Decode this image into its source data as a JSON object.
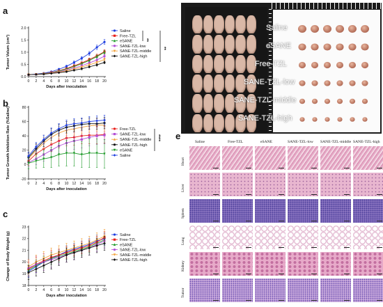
{
  "colors": {
    "Saline": "#1f3fe0",
    "Free-TZL": "#e8201b",
    "eSANE": "#1f9a2a",
    "SANE-TZL-low": "#b24fd6",
    "SANE-TZL-middle": "#f2a13a",
    "SANE-TZL-high": "#111111"
  },
  "chart_data": [
    {
      "panel": "a",
      "type": "line",
      "xlabel": "Days after inoculation",
      "ylabel": "Tumor Volum (cm³)",
      "x": [
        0,
        2,
        4,
        6,
        8,
        10,
        12,
        14,
        16,
        18,
        20
      ],
      "xlim": [
        0,
        20
      ],
      "ylim": [
        0,
        2.0
      ],
      "yticks": [
        0.0,
        0.5,
        1.0,
        1.5,
        2.0
      ],
      "ytick_labels": [
        "0.0",
        "0.5",
        "1.0",
        "1.5",
        "2.0"
      ],
      "legend_position": "top-right",
      "significance": [
        "**",
        "**"
      ],
      "series": [
        {
          "name": "Saline",
          "values": [
            0.08,
            0.1,
            0.14,
            0.2,
            0.3,
            0.42,
            0.58,
            0.75,
            0.95,
            1.2,
            1.42
          ],
          "err": [
            0.01,
            0.02,
            0.02,
            0.03,
            0.04,
            0.05,
            0.06,
            0.07,
            0.08,
            0.09,
            0.1
          ]
        },
        {
          "name": "Free-TZL",
          "values": [
            0.08,
            0.09,
            0.12,
            0.17,
            0.24,
            0.33,
            0.44,
            0.56,
            0.7,
            0.85,
            1.02
          ],
          "err": [
            0.01,
            0.01,
            0.02,
            0.02,
            0.03,
            0.04,
            0.05,
            0.05,
            0.06,
            0.07,
            0.08
          ]
        },
        {
          "name": "eSANE",
          "values": [
            0.08,
            0.09,
            0.12,
            0.16,
            0.23,
            0.31,
            0.41,
            0.53,
            0.66,
            0.82,
            1.0
          ],
          "err": [
            0.01,
            0.01,
            0.02,
            0.02,
            0.03,
            0.04,
            0.05,
            0.05,
            0.06,
            0.07,
            0.08
          ]
        },
        {
          "name": "SANE-TZL-low",
          "values": [
            0.08,
            0.09,
            0.11,
            0.15,
            0.2,
            0.27,
            0.35,
            0.45,
            0.56,
            0.68,
            0.84
          ],
          "err": [
            0.01,
            0.01,
            0.02,
            0.02,
            0.03,
            0.03,
            0.04,
            0.05,
            0.05,
            0.06,
            0.07
          ]
        },
        {
          "name": "SANE-TZL-middle",
          "values": [
            0.08,
            0.09,
            0.11,
            0.14,
            0.18,
            0.24,
            0.31,
            0.39,
            0.48,
            0.58,
            0.7
          ],
          "err": [
            0.01,
            0.01,
            0.01,
            0.02,
            0.02,
            0.03,
            0.04,
            0.04,
            0.05,
            0.05,
            0.06
          ]
        },
        {
          "name": "SANE-TZL-high",
          "values": [
            0.08,
            0.09,
            0.1,
            0.13,
            0.16,
            0.2,
            0.26,
            0.32,
            0.4,
            0.48,
            0.58
          ],
          "err": [
            0.01,
            0.01,
            0.01,
            0.02,
            0.02,
            0.03,
            0.03,
            0.04,
            0.04,
            0.05,
            0.05
          ]
        }
      ]
    },
    {
      "panel": "b",
      "type": "line",
      "xlabel": "Days after inoculation",
      "ylabel": "Tumor Growth Inhibition Rate  (%Saline)",
      "x": [
        0,
        2,
        4,
        6,
        8,
        10,
        12,
        14,
        16,
        18,
        20
      ],
      "xlim": [
        0,
        20
      ],
      "ylim": [
        -20,
        80
      ],
      "yticks": [
        -20,
        0,
        20,
        40,
        60,
        80
      ],
      "ytick_labels": [
        "-20",
        "0",
        "20",
        "40",
        "60",
        "80"
      ],
      "legend_position": "right",
      "significance": [
        "****"
      ],
      "series": [
        {
          "name": "Free-TZL",
          "values": [
            5,
            15,
            22,
            28,
            33,
            37,
            38,
            40,
            41,
            41,
            42
          ],
          "err": [
            6,
            8,
            9,
            10,
            10,
            11,
            11,
            11,
            12,
            12,
            12
          ]
        },
        {
          "name": "SANE-TZL-low",
          "values": [
            3,
            8,
            14,
            20,
            26,
            30,
            33,
            35,
            38,
            40,
            41
          ],
          "err": [
            6,
            8,
            9,
            10,
            11,
            11,
            12,
            12,
            12,
            12,
            12
          ]
        },
        {
          "name": "SANE-TZL-middle",
          "values": [
            8,
            20,
            30,
            38,
            44,
            48,
            50,
            52,
            54,
            55,
            55
          ],
          "err": [
            6,
            8,
            8,
            9,
            9,
            9,
            9,
            9,
            9,
            9,
            9
          ]
        },
        {
          "name": "SANE-TZL-high",
          "values": [
            10,
            22,
            33,
            42,
            48,
            52,
            54,
            56,
            57,
            57,
            58
          ],
          "err": [
            6,
            7,
            8,
            8,
            8,
            8,
            8,
            8,
            8,
            8,
            8
          ]
        },
        {
          "name": "eSANE",
          "values": [
            2,
            5,
            8,
            10,
            14,
            16,
            16,
            14,
            16,
            16,
            15
          ],
          "err": [
            8,
            10,
            12,
            14,
            16,
            18,
            18,
            18,
            20,
            20,
            20
          ]
        },
        {
          "name": "Saline",
          "values": [
            12,
            25,
            35,
            44,
            50,
            55,
            57,
            58,
            60,
            61,
            62
          ],
          "err": [
            5,
            6,
            6,
            7,
            7,
            7,
            7,
            7,
            7,
            7,
            7
          ]
        }
      ]
    },
    {
      "panel": "c",
      "type": "line",
      "xlabel": "Days after inoculation",
      "ylabel": "Change of Body Weight  (g)",
      "x": [
        0,
        2,
        4,
        6,
        8,
        10,
        12,
        14,
        16,
        18,
        20
      ],
      "xlim": [
        0,
        20
      ],
      "ylim": [
        18,
        23
      ],
      "yticks": [
        18,
        19,
        20,
        21,
        22,
        23
      ],
      "ytick_labels": [
        "18",
        "19",
        "20",
        "21",
        "22",
        "23"
      ],
      "legend_position": "top-right",
      "series": [
        {
          "name": "Saline",
          "values": [
            19.2,
            19.6,
            20.0,
            20.3,
            20.6,
            20.9,
            21.1,
            21.3,
            21.5,
            21.8,
            22.0
          ],
          "err": [
            0.5,
            0.5,
            0.5,
            0.5,
            0.5,
            0.5,
            0.5,
            0.5,
            0.5,
            0.5,
            0.5
          ]
        },
        {
          "name": "Free-TZL",
          "values": [
            19.4,
            19.8,
            20.1,
            20.4,
            20.6,
            20.8,
            21.0,
            21.2,
            21.4,
            21.7,
            22.1
          ],
          "err": [
            0.6,
            0.6,
            0.6,
            0.6,
            0.5,
            0.5,
            0.5,
            0.5,
            0.5,
            0.5,
            0.5
          ]
        },
        {
          "name": "eSANE",
          "values": [
            19.3,
            19.7,
            20.0,
            20.3,
            20.5,
            20.7,
            20.9,
            21.1,
            21.3,
            21.6,
            21.9
          ],
          "err": [
            0.5,
            0.5,
            0.5,
            0.5,
            0.5,
            0.5,
            0.5,
            0.5,
            0.5,
            0.5,
            0.5
          ]
        },
        {
          "name": "SANE-TZL-low",
          "values": [
            19.5,
            19.8,
            20.0,
            20.2,
            20.4,
            20.6,
            20.8,
            21.0,
            21.2,
            21.5,
            21.8
          ],
          "err": [
            0.7,
            0.7,
            0.7,
            0.7,
            0.6,
            0.6,
            0.6,
            0.6,
            0.6,
            0.6,
            0.6
          ]
        },
        {
          "name": "SANE-TZL-middle",
          "values": [
            19.6,
            20.0,
            20.3,
            20.6,
            20.8,
            21.0,
            21.2,
            21.4,
            21.6,
            21.9,
            22.2
          ],
          "err": [
            0.6,
            0.6,
            0.6,
            0.6,
            0.6,
            0.6,
            0.6,
            0.6,
            0.6,
            0.6,
            0.6
          ]
        },
        {
          "name": "SANE-TZL-high",
          "values": [
            19.1,
            19.4,
            19.7,
            20.0,
            20.3,
            20.6,
            20.8,
            21.0,
            21.2,
            21.4,
            21.6
          ],
          "err": [
            0.6,
            0.6,
            0.6,
            0.6,
            0.6,
            0.6,
            0.6,
            0.6,
            0.6,
            0.6,
            0.6
          ]
        }
      ]
    }
  ],
  "panel_d": {
    "letter": "d",
    "tumor_labels": [
      "Saline",
      "eSANE",
      "Free-TZL",
      "SANE-TZL-low",
      "SANE-TZL-middle",
      "SANE-TZL-high"
    ],
    "tumors_per_row": 6,
    "mice_count": 36
  },
  "panel_e": {
    "letter": "e",
    "columns": [
      "Saline",
      "Free-TZL",
      "eSANE",
      "SANE-TZL-low",
      "SANE-TZL-middle",
      "SANE-TZL-high"
    ],
    "rows": [
      "Heart",
      "Liver",
      "Spleen",
      "Lung",
      "Kidney",
      "Tumor"
    ]
  }
}
